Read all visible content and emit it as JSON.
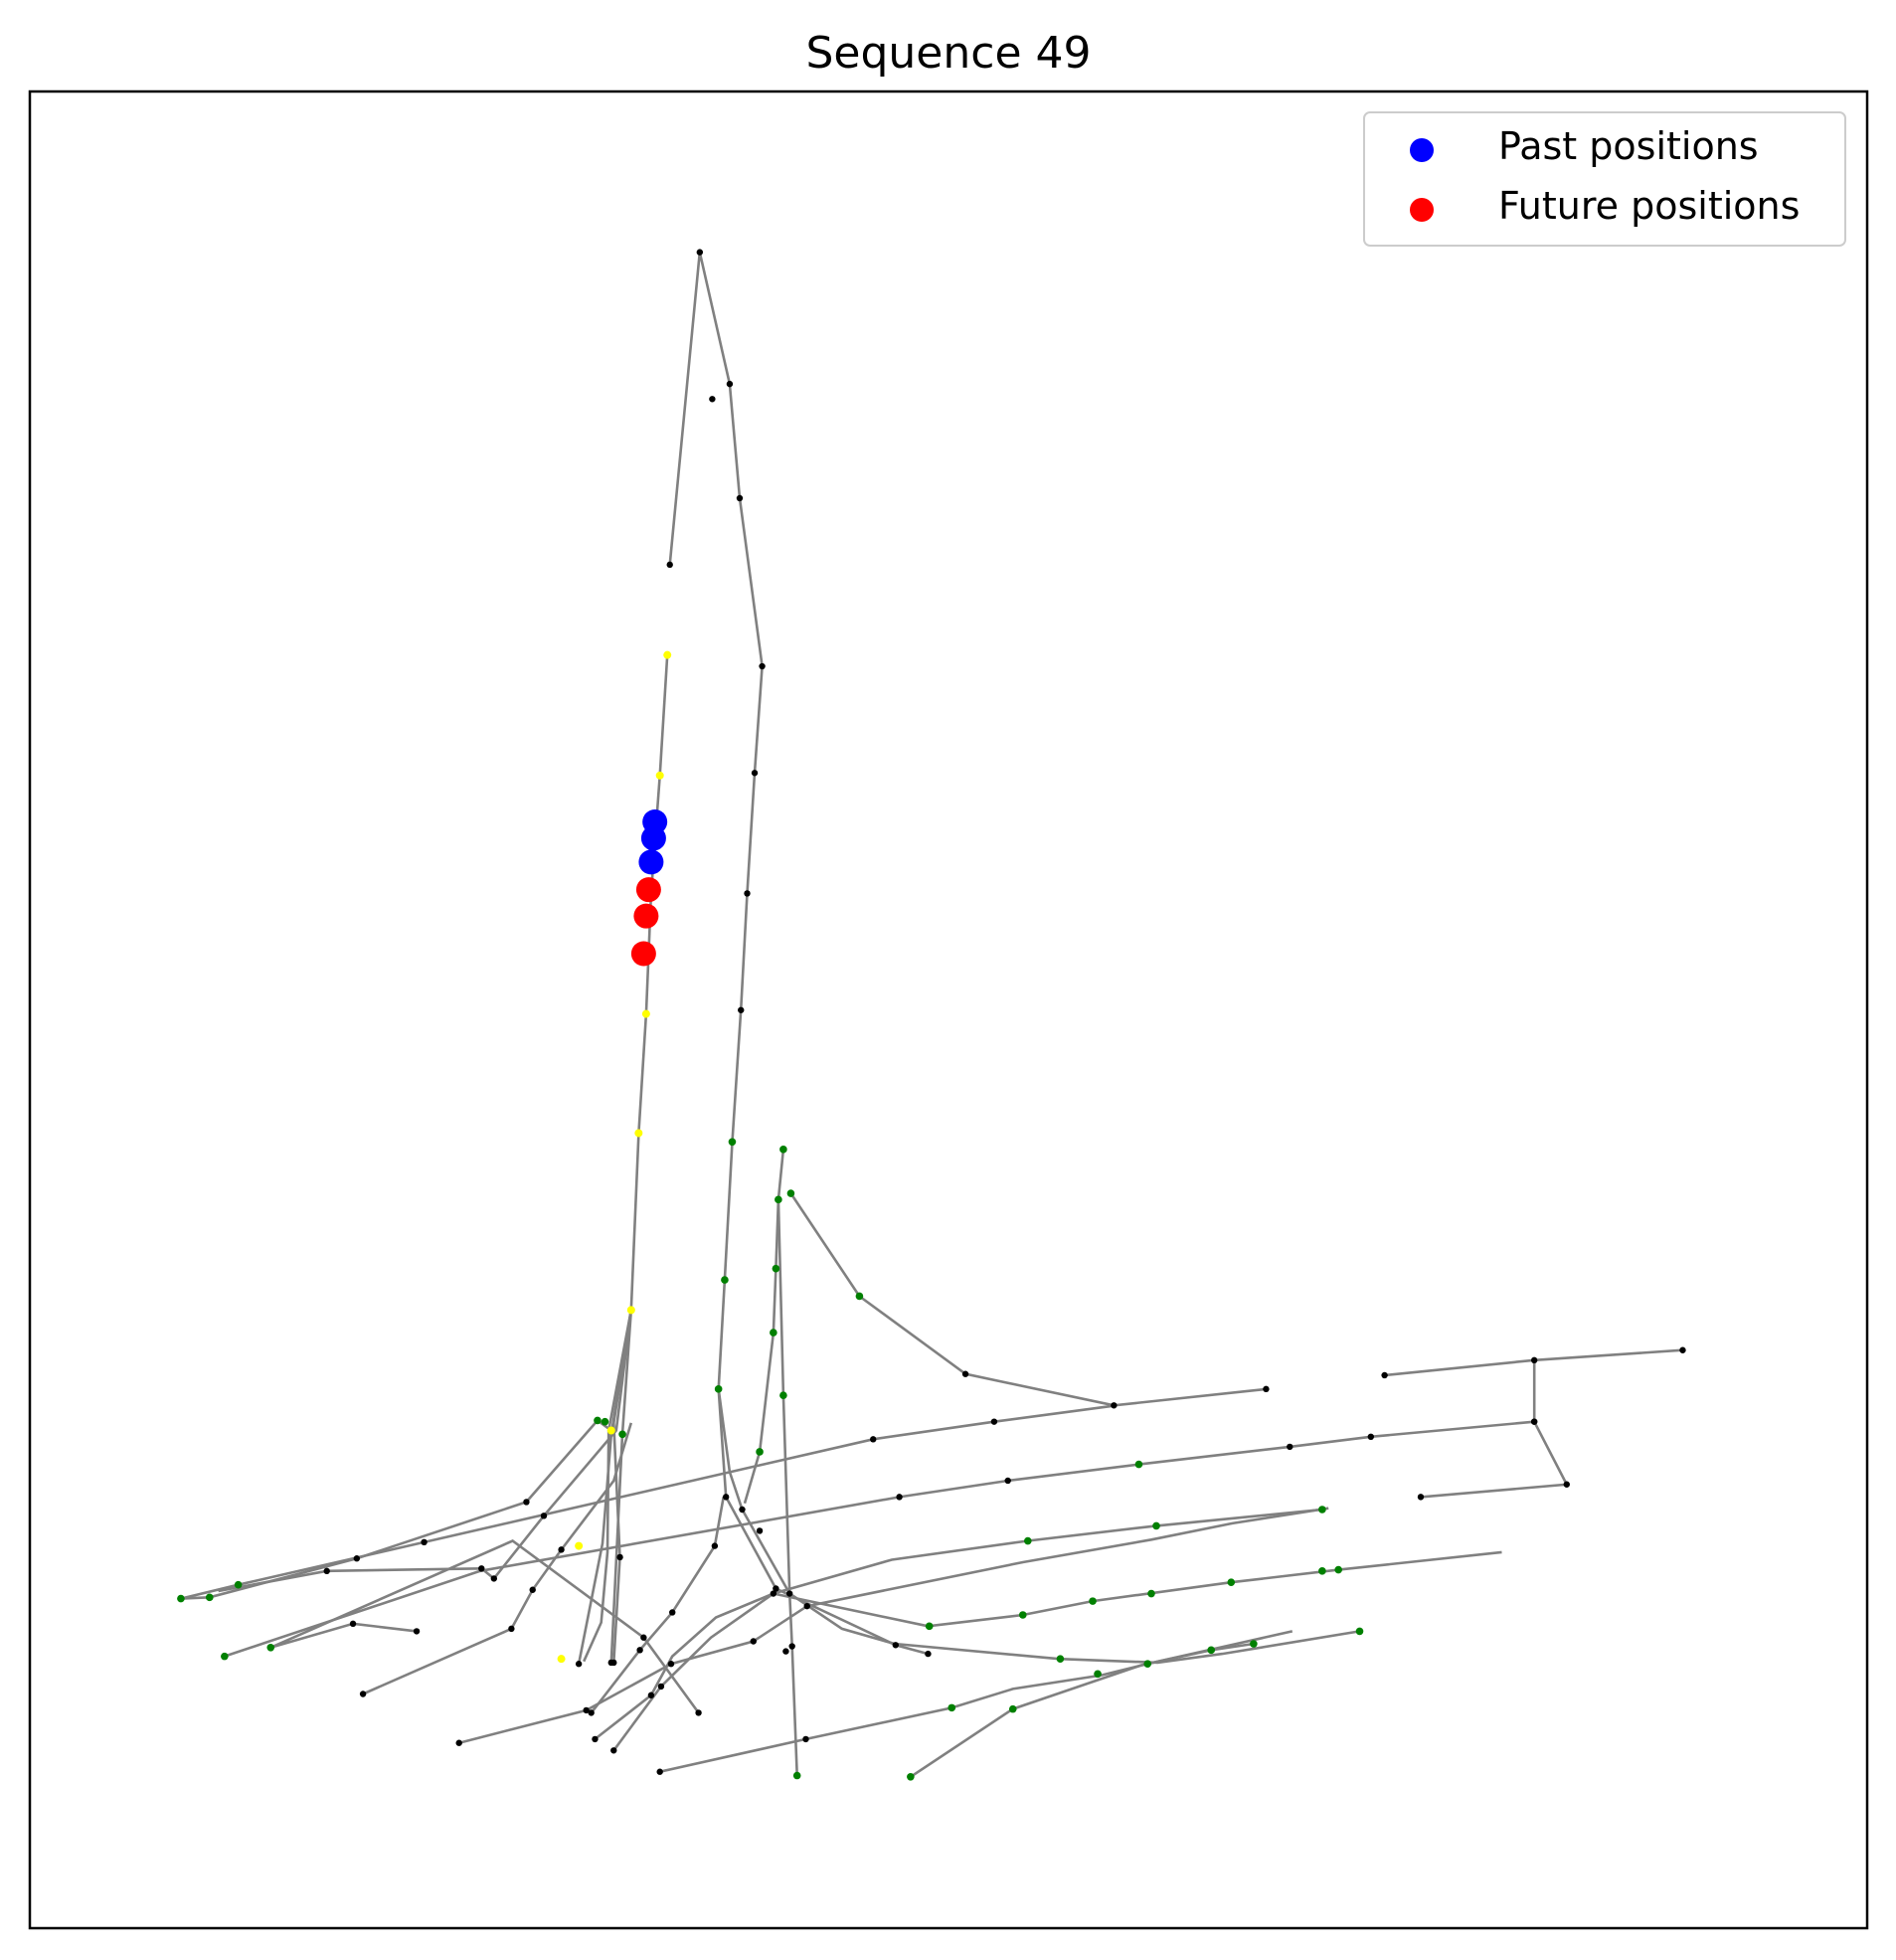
{
  "chart_data": {
    "type": "scatter",
    "title": "Sequence 49",
    "xlabel": "",
    "ylabel": "",
    "axes_ticks": false,
    "grid": false,
    "legend_placement": "top-right",
    "colors": {
      "edge": "#808080",
      "node_default": "#000000",
      "node_green": "#008000",
      "node_yellow": "#ffff00",
      "past": "#0000ff",
      "future": "#ff0000",
      "frame": "#000000"
    },
    "legend": [
      {
        "label": "Past positions",
        "color": "#0000ff"
      },
      {
        "label": "Future positions",
        "color": "#ff0000"
      }
    ],
    "past_positions": [
      [
        525,
        655
      ],
      [
        524,
        668
      ],
      [
        522,
        687
      ]
    ],
    "future_positions": [
      [
        520,
        709
      ],
      [
        518,
        730
      ],
      [
        516,
        760
      ]
    ],
    "edges": [
      [
        [
          537,
          450
        ],
        [
          561,
          201
        ],
        [
          585,
          306
        ],
        [
          593,
          397
        ],
        [
          611,
          531
        ],
        [
          605,
          616
        ],
        [
          599,
          712
        ],
        [
          594,
          805
        ],
        [
          587,
          910
        ],
        [
          581,
          1020
        ],
        [
          576,
          1107
        ],
        [
          582,
          1193
        ]
      ],
      [
        [
          580,
          1193
        ],
        [
          573,
          1232
        ],
        [
          539,
          1285
        ],
        [
          513,
          1315
        ],
        [
          474,
          1365
        ]
      ],
      [
        [
          576,
          1107
        ],
        [
          585,
          1173
        ],
        [
          595,
          1203
        ],
        [
          633,
          1270
        ],
        [
          675,
          1298
        ],
        [
          717,
          1310
        ],
        [
          849,
          1322
        ],
        [
          928,
          1325
        ],
        [
          980,
          1318
        ],
        [
          1090,
          1300
        ]
      ],
      [
        [
          535,
          522
        ],
        [
          529,
          618
        ],
        [
          522,
          712
        ],
        [
          518,
          808
        ],
        [
          512,
          903
        ],
        [
          506,
          1044
        ],
        [
          492,
          1134
        ],
        [
          490,
          1140
        ],
        [
          479,
          1132
        ],
        [
          422,
          1197
        ],
        [
          286,
          1242
        ],
        [
          168,
          1273
        ],
        [
          145,
          1274
        ]
      ],
      [
        [
          506,
          1044
        ],
        [
          490,
          1143
        ],
        [
          483,
          1230
        ],
        [
          464,
          1326
        ]
      ],
      [
        [
          506,
          1044
        ],
        [
          488,
          1140
        ],
        [
          487,
          1237
        ],
        [
          482,
          1293
        ],
        [
          468,
          1324
        ]
      ],
      [
        [
          506,
          1044
        ],
        [
          499,
          1143
        ],
        [
          490,
          1325
        ]
      ],
      [
        [
          506,
          1044
        ],
        [
          494,
          1140
        ],
        [
          436,
          1208
        ],
        [
          396,
          1258
        ],
        [
          386,
          1250
        ],
        [
          262,
          1252
        ],
        [
          175,
          1268
        ]
      ],
      [
        [
          492,
          1134
        ],
        [
          497,
          1241
        ],
        [
          492,
          1325
        ]
      ],
      [
        [
          628,
          916
        ],
        [
          624,
          956
        ],
        [
          622,
          1011
        ],
        [
          620,
          1062
        ],
        [
          609,
          1157
        ],
        [
          597,
          1198
        ]
      ],
      [
        [
          634,
          951
        ],
        [
          689,
          1033
        ],
        [
          774,
          1095
        ],
        [
          893,
          1120
        ],
        [
          1015,
          1107
        ]
      ],
      [
        [
          624,
          956
        ],
        [
          628,
          1112
        ],
        [
          633,
          1270
        ],
        [
          635,
          1312
        ],
        [
          639,
          1415
        ]
      ],
      [
        [
          145,
          1274
        ],
        [
          191,
          1263
        ],
        [
          700,
          1147
        ],
        [
          797,
          1133
        ],
        [
          895,
          1120
        ]
      ],
      [
        [
          334,
          1300
        ],
        [
          283,
          1294
        ],
        [
          217,
          1313
        ],
        [
          411,
          1228
        ],
        [
          516,
          1305
        ],
        [
          560,
          1365
        ]
      ],
      [
        [
          180,
          1320
        ],
        [
          385,
          1252
        ],
        [
          721,
          1193
        ],
        [
          808,
          1180
        ],
        [
          913,
          1167
        ],
        [
          1034,
          1153
        ],
        [
          1099,
          1145
        ],
        [
          1230,
          1133
        ]
      ],
      [
        [
          1110,
          1096
        ],
        [
          1230,
          1084
        ],
        [
          1349,
          1076
        ]
      ],
      [
        [
          1230,
          1084
        ],
        [
          1230,
          1133
        ],
        [
          1256,
          1183
        ],
        [
          1139,
          1193
        ]
      ],
      [
        [
          291,
          1350
        ],
        [
          410,
          1298
        ],
        [
          427,
          1267
        ],
        [
          450,
          1235
        ],
        [
          492,
          1180
        ],
        [
          506,
          1134
        ]
      ],
      [
        [
          368,
          1389
        ],
        [
          470,
          1363
        ],
        [
          538,
          1326
        ],
        [
          604,
          1308
        ],
        [
          647,
          1280
        ],
        [
          820,
          1245
        ],
        [
          923,
          1227
        ],
        [
          988,
          1214
        ],
        [
          1065,
          1202
        ]
      ],
      [
        [
          477,
          1386
        ],
        [
          522,
          1351
        ],
        [
          539,
          1320
        ],
        [
          574,
          1289
        ],
        [
          620,
          1270
        ],
        [
          715,
          1243
        ],
        [
          824,
          1228
        ],
        [
          927,
          1216
        ],
        [
          1060,
          1203
        ]
      ],
      [
        [
          492,
          1395
        ],
        [
          530,
          1344
        ],
        [
          570,
          1305
        ],
        [
          620,
          1270
        ],
        [
          744,
          1296
        ],
        [
          820,
          1287
        ],
        [
          876,
          1276
        ],
        [
          987,
          1261
        ],
        [
          1073,
          1251
        ],
        [
          1204,
          1237
        ]
      ],
      [
        [
          529,
          1412
        ],
        [
          646,
          1386
        ],
        [
          763,
          1361
        ],
        [
          812,
          1346
        ],
        [
          883,
          1335
        ],
        [
          920,
          1326
        ],
        [
          971,
          1315
        ],
        [
          1005,
          1310
        ]
      ],
      [
        [
          730,
          1416
        ],
        [
          812,
          1362
        ],
        [
          915,
          1327
        ],
        [
          1036,
          1300
        ]
      ],
      [
        [
          582,
          1193
        ],
        [
          622,
          1266
        ],
        [
          718,
          1311
        ],
        [
          744,
          1318
        ]
      ]
    ],
    "nodes_default": [
      [
        561,
        201
      ],
      [
        571,
        318
      ],
      [
        585,
        306
      ],
      [
        593,
        397
      ],
      [
        537,
        450
      ],
      [
        611,
        531
      ],
      [
        605,
        616
      ],
      [
        599,
        712
      ],
      [
        594,
        805
      ],
      [
        582,
        1193
      ],
      [
        700,
        1147
      ],
      [
        797,
        1133
      ],
      [
        893,
        1120
      ],
      [
        1015,
        1107
      ],
      [
        774,
        1095
      ],
      [
        1110,
        1096
      ],
      [
        1230,
        1084
      ],
      [
        1349,
        1076
      ],
      [
        1230,
        1133
      ],
      [
        1256,
        1183
      ],
      [
        1139,
        1193
      ],
      [
        1099,
        1145
      ],
      [
        1034,
        1153
      ],
      [
        808,
        1180
      ],
      [
        721,
        1193
      ],
      [
        633,
        1270
      ],
      [
        620,
        1270
      ],
      [
        604,
        1308
      ],
      [
        573,
        1232
      ],
      [
        539,
        1285
      ],
      [
        513,
        1315
      ],
      [
        474,
        1365
      ],
      [
        464,
        1326
      ],
      [
        492,
        1325
      ],
      [
        490,
        1325
      ],
      [
        497,
        1241
      ],
      [
        422,
        1197
      ],
      [
        450,
        1235
      ],
      [
        436,
        1208
      ],
      [
        386,
        1250
      ],
      [
        396,
        1258
      ],
      [
        340,
        1229
      ],
      [
        286,
        1242
      ],
      [
        262,
        1252
      ],
      [
        283,
        1294
      ],
      [
        334,
        1300
      ],
      [
        291,
        1350
      ],
      [
        410,
        1298
      ],
      [
        427,
        1267
      ],
      [
        368,
        1389
      ],
      [
        477,
        1386
      ],
      [
        492,
        1395
      ],
      [
        522,
        1351
      ],
      [
        538,
        1326
      ],
      [
        560,
        1365
      ],
      [
        529,
        1412
      ],
      [
        646,
        1386
      ],
      [
        630,
        1316
      ],
      [
        635,
        1312
      ],
      [
        647,
        1280
      ],
      [
        718,
        1311
      ],
      [
        744,
        1318
      ],
      [
        595,
        1203
      ],
      [
        1230,
        1133
      ],
      [
        576,
        1107
      ],
      [
        470,
        1363
      ],
      [
        530,
        1344
      ],
      [
        516,
        1305
      ],
      [
        609,
        1220
      ],
      [
        622,
        1266
      ]
    ],
    "nodes_green": [
      [
        587,
        910
      ],
      [
        581,
        1020
      ],
      [
        576,
        1107
      ],
      [
        628,
        916
      ],
      [
        624,
        956
      ],
      [
        634,
        951
      ],
      [
        622,
        1011
      ],
      [
        620,
        1062
      ],
      [
        628,
        1112
      ],
      [
        609,
        1157
      ],
      [
        689,
        1033
      ],
      [
        479,
        1132
      ],
      [
        485,
        1133
      ],
      [
        490,
        1140
      ],
      [
        499,
        1143
      ],
      [
        145,
        1274
      ],
      [
        168,
        1273
      ],
      [
        191,
        1263
      ],
      [
        180,
        1320
      ],
      [
        217,
        1313
      ],
      [
        913,
        1167
      ],
      [
        824,
        1228
      ],
      [
        927,
        1216
      ],
      [
        1060,
        1203
      ],
      [
        745,
        1296
      ],
      [
        820,
        1287
      ],
      [
        876,
        1276
      ],
      [
        923,
        1270
      ],
      [
        987,
        1261
      ],
      [
        1060,
        1252
      ],
      [
        1073,
        1251
      ],
      [
        850,
        1322
      ],
      [
        880,
        1334
      ],
      [
        920,
        1326
      ],
      [
        971,
        1315
      ],
      [
        1005,
        1310
      ],
      [
        1090,
        1300
      ],
      [
        763,
        1361
      ],
      [
        812,
        1362
      ],
      [
        730,
        1416
      ],
      [
        639,
        1415
      ]
    ],
    "nodes_yellow": [
      [
        535,
        522
      ],
      [
        529,
        618
      ],
      [
        522,
        712
      ],
      [
        518,
        808
      ],
      [
        512,
        903
      ],
      [
        506,
        1044
      ],
      [
        490,
        1140
      ],
      [
        464,
        1232
      ],
      [
        450,
        1322
      ]
    ]
  }
}
